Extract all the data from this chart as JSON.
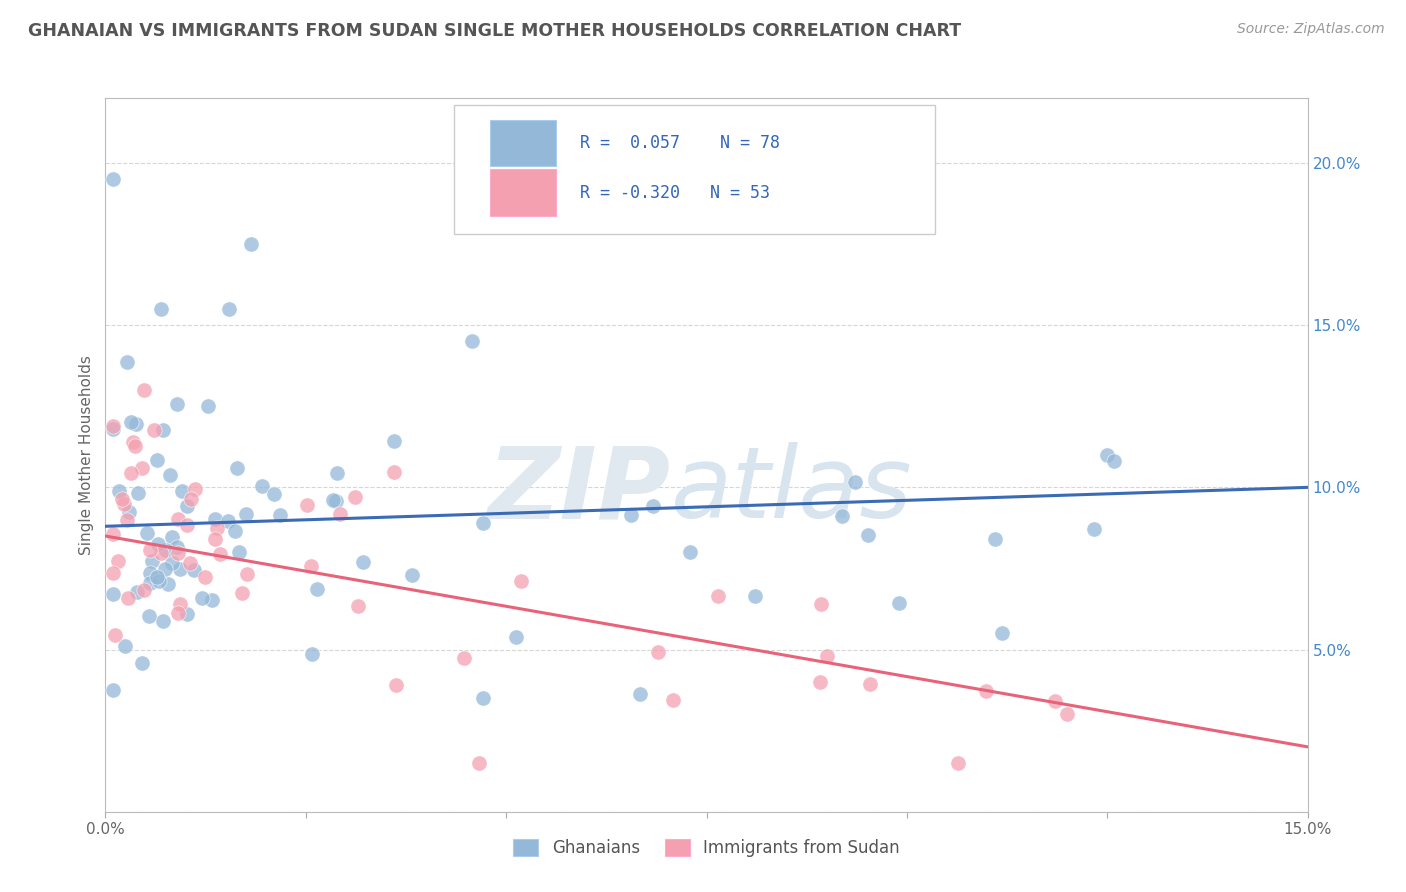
{
  "title": "GHANAIAN VS IMMIGRANTS FROM SUDAN SINGLE MOTHER HOUSEHOLDS CORRELATION CHART",
  "source_text": "Source: ZipAtlas.com",
  "ylabel": "Single Mother Households",
  "xlim": [
    0.0,
    0.15
  ],
  "ylim": [
    0.0,
    0.22
  ],
  "blue_color": "#93B8D8",
  "pink_color": "#F4A0B0",
  "line_blue": "#3B6BB5",
  "line_pink": "#E8637A",
  "blue_line_y0": 0.088,
  "blue_line_y1": 0.1,
  "pink_line_y0": 0.085,
  "pink_line_y1": 0.02,
  "watermark_zip": "ZIP",
  "watermark_atlas": "atlas",
  "legend_r1": "R =  0.057",
  "legend_n1": "N = 78",
  "legend_r2": "R = -0.320",
  "legend_n2": "N = 53"
}
